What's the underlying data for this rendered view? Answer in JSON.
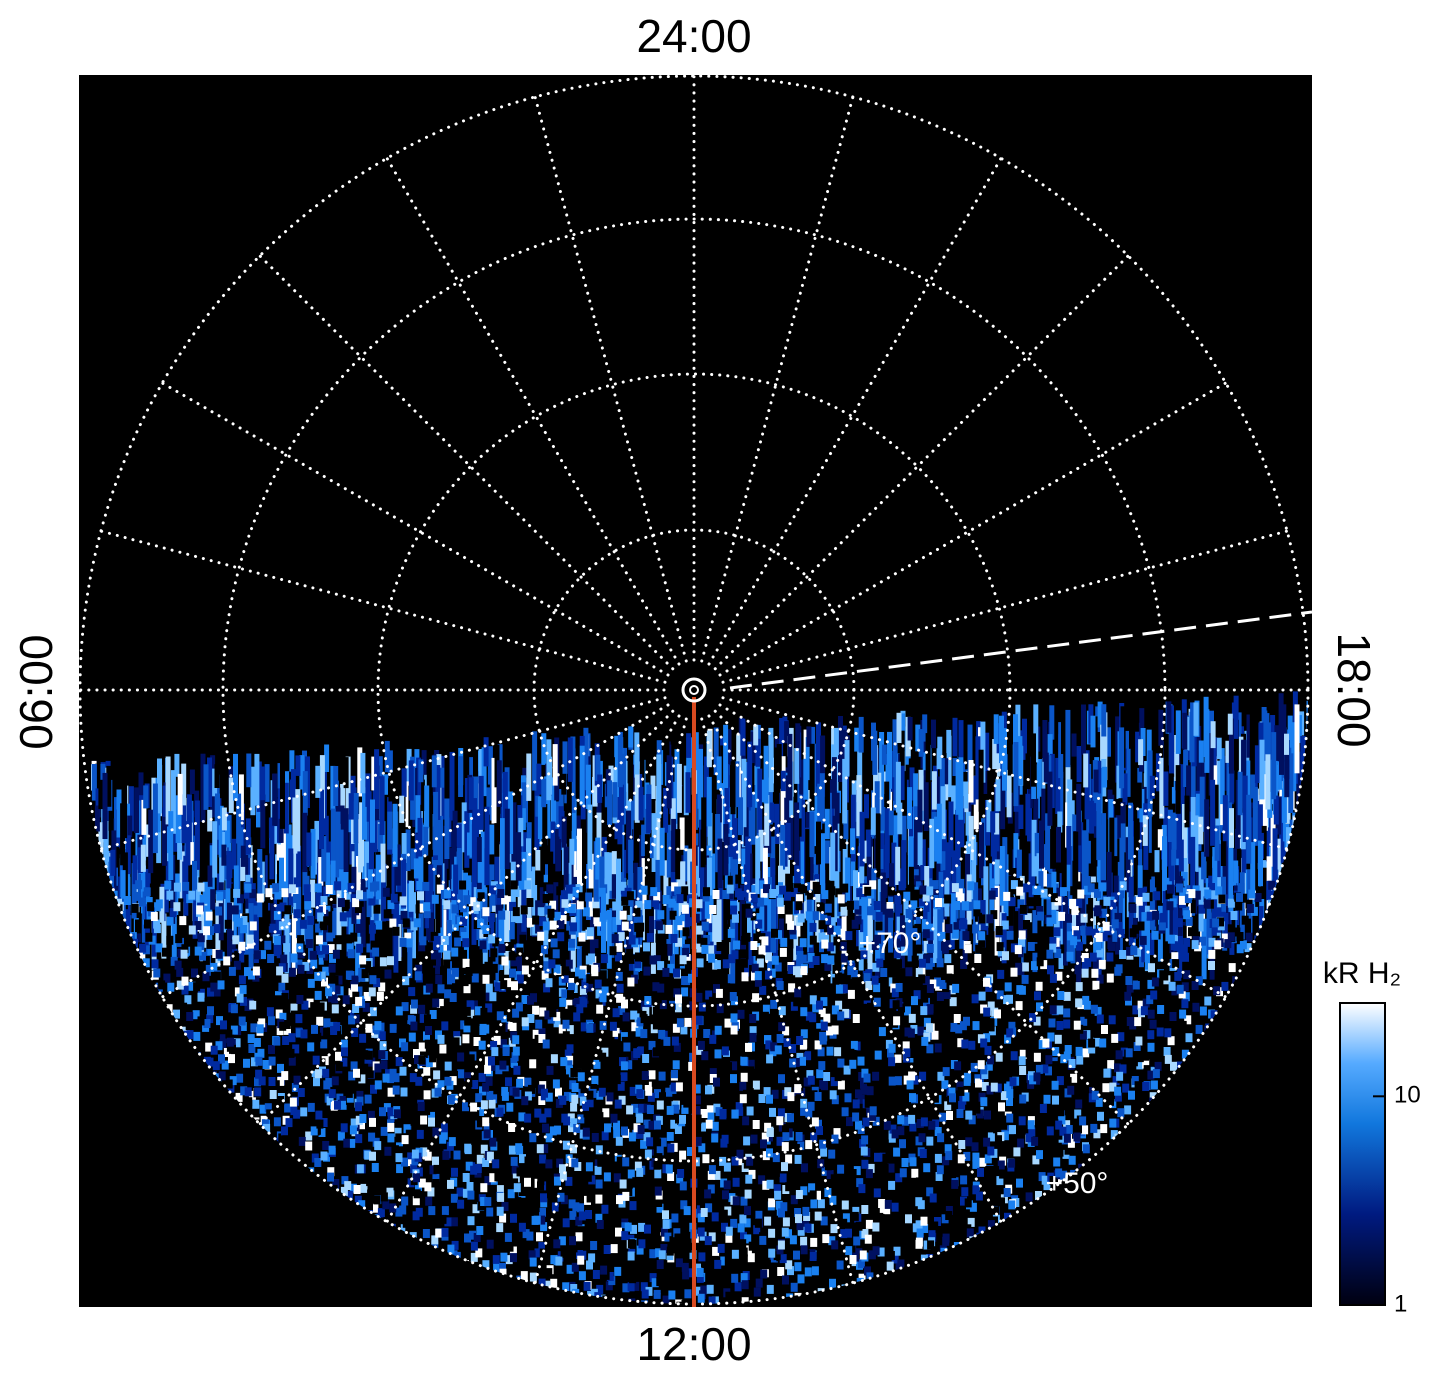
{
  "chart_data": {
    "type": "polar",
    "direction_labels": {
      "top": "24:00",
      "left": "06:00",
      "right": "18:00",
      "bottom": "12:00"
    },
    "latitude_labels": [
      "+70°",
      "+50°"
    ],
    "colorbar": {
      "label": "kR H₂",
      "scale": "log",
      "clim": [
        1,
        28
      ],
      "ticks": [
        1,
        10
      ]
    }
  }
}
